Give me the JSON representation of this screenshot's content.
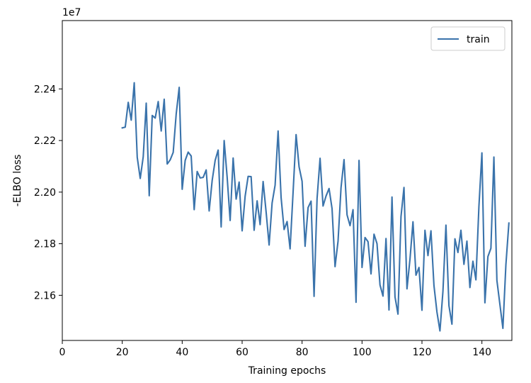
{
  "chart_data": {
    "type": "line",
    "title": "",
    "xlabel": "Training epochs",
    "ylabel": "-ELBO loss",
    "y_offset_label": "1e7",
    "xlim": [
      0,
      150
    ],
    "ylim": [
      2.1425,
      2.2665
    ],
    "xticks": [
      0,
      20,
      40,
      60,
      80,
      100,
      120,
      140
    ],
    "yticks": [
      2.16,
      2.18,
      2.2,
      2.22,
      2.24
    ],
    "xtick_labels": [
      "0",
      "20",
      "40",
      "60",
      "80",
      "100",
      "120",
      "140"
    ],
    "ytick_labels": [
      "2.16",
      "2.18",
      "2.20",
      "2.22",
      "2.24"
    ],
    "grid": false,
    "legend_position": "top-right",
    "series": [
      {
        "name": "train",
        "color": "#3a73ab",
        "x": [
          20,
          21,
          22,
          23,
          24,
          25,
          26,
          27,
          28,
          29,
          30,
          31,
          32,
          33,
          34,
          35,
          36,
          37,
          38,
          39,
          40,
          41,
          42,
          43,
          44,
          45,
          46,
          47,
          48,
          49,
          50,
          51,
          52,
          53,
          54,
          55,
          56,
          57,
          58,
          59,
          60,
          61,
          62,
          63,
          64,
          65,
          66,
          67,
          68,
          69,
          70,
          71,
          72,
          73,
          74,
          75,
          76,
          77,
          78,
          79,
          80,
          81,
          82,
          83,
          84,
          85,
          86,
          87,
          88,
          89,
          90,
          91,
          92,
          93,
          94,
          95,
          96,
          97,
          98,
          99,
          100,
          101,
          102,
          103,
          104,
          105,
          106,
          107,
          108,
          109,
          110,
          111,
          112,
          113,
          114,
          115,
          116,
          117,
          118,
          119,
          120,
          121,
          122,
          123,
          124,
          125,
          126,
          127,
          128,
          129,
          130,
          131,
          132,
          133,
          134,
          135,
          136,
          137,
          138,
          139,
          140,
          141,
          142,
          143,
          144,
          145,
          146,
          147,
          148,
          149
        ],
        "y": [
          2.2249,
          2.2252,
          2.2348,
          2.2279,
          2.2424,
          2.2135,
          2.2053,
          2.2137,
          2.2345,
          2.1986,
          2.2297,
          2.2287,
          2.2351,
          2.2237,
          2.236,
          2.2109,
          2.2125,
          2.2154,
          2.2303,
          2.2406,
          2.2011,
          2.2123,
          2.2155,
          2.214,
          2.1932,
          2.208,
          2.2055,
          2.2057,
          2.2086,
          2.1927,
          2.2045,
          2.2123,
          2.2163,
          2.1865,
          2.22,
          2.2058,
          2.189,
          2.2132,
          2.1973,
          2.2039,
          2.185,
          2.1984,
          2.2061,
          2.206,
          2.1852,
          2.1966,
          2.1874,
          2.2041,
          2.1923,
          2.1795,
          2.1958,
          2.2027,
          2.2237,
          2.1979,
          2.1855,
          2.1886,
          2.178,
          2.2,
          2.2223,
          2.2098,
          2.2042,
          2.179,
          2.194,
          2.1965,
          2.1596,
          2.1975,
          2.2131,
          2.1946,
          2.1985,
          2.2014,
          2.1936,
          2.1711,
          2.181,
          2.2018,
          2.2126,
          2.1912,
          2.187,
          2.1932,
          2.1573,
          2.2123,
          2.1708,
          2.1824,
          2.1808,
          2.1683,
          2.1837,
          2.18,
          2.164,
          2.1597,
          2.182,
          2.1543,
          2.1981,
          2.1594,
          2.1527,
          2.1905,
          2.2018,
          2.1625,
          2.174,
          2.1885,
          2.1678,
          2.1708,
          2.1542,
          2.1852,
          2.1754,
          2.185,
          2.1638,
          2.1535,
          2.1462,
          2.1616,
          2.1872,
          2.156,
          2.1488,
          2.1819,
          2.1766,
          2.1852,
          2.172,
          2.181,
          2.163,
          2.1732,
          2.166,
          2.1944,
          2.2152,
          2.1571,
          2.175,
          2.1782,
          2.2136,
          2.1658,
          2.1565,
          2.1472,
          2.1718,
          2.188
        ]
      }
    ]
  }
}
